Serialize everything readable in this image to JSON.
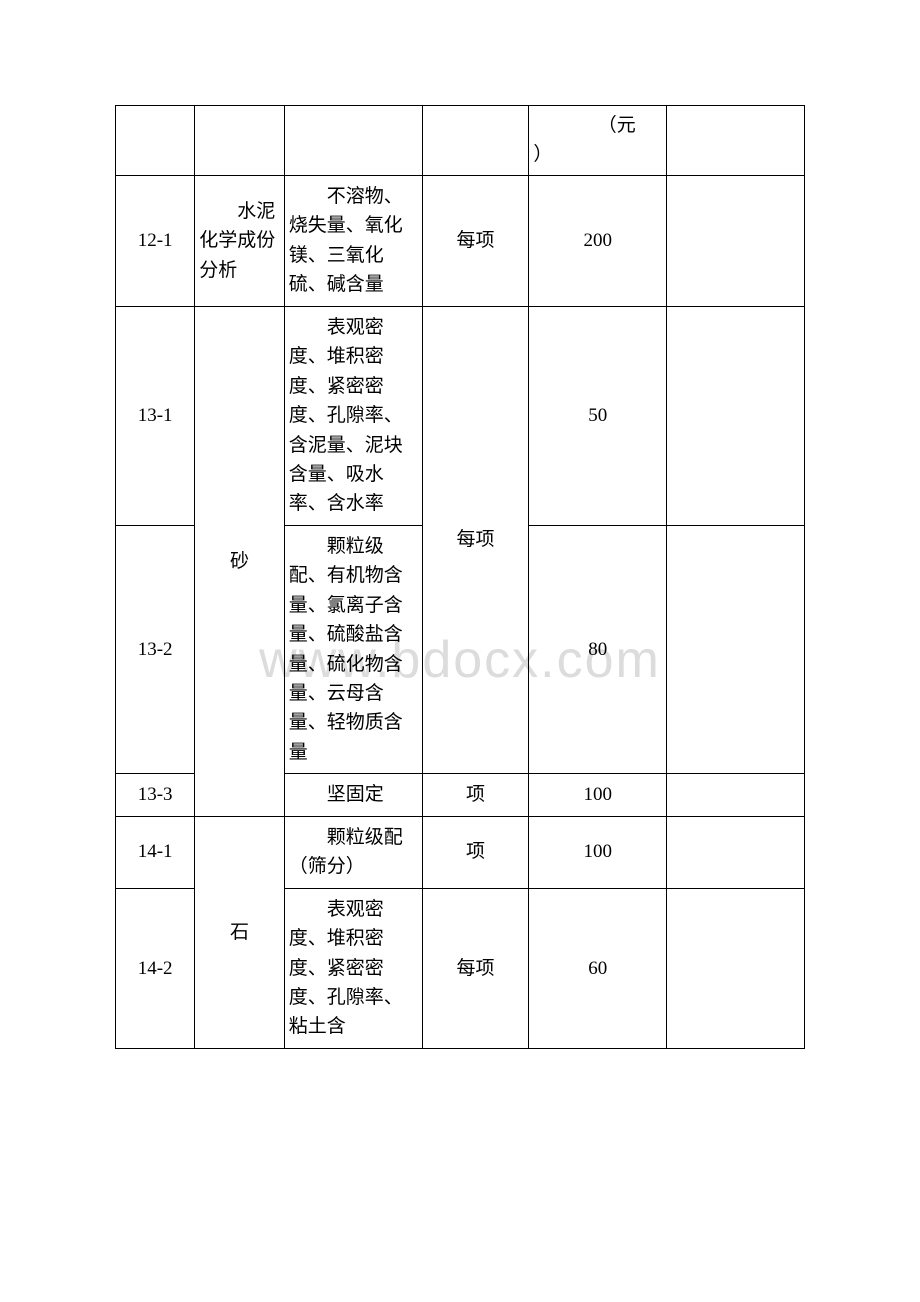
{
  "watermark": "www.bdocx.com",
  "header_price_unit": "（元）",
  "rows": [
    {
      "sn": "12-1",
      "category": "水泥化学成份分析",
      "item": "不溶物、烧失量、氧化镁、三氧化硫、碱含量",
      "unit": "每项",
      "price": "200"
    },
    {
      "sn": "13-1",
      "category": "砂",
      "item": "表观密度、堆积密度、紧密密度、孔隙率、含泥量、泥块含量、吸水率、含水率",
      "unit": "每项",
      "price": "50"
    },
    {
      "sn": "13-2",
      "category": "砂",
      "item": "颗粒级配、有机物含量、氯离子含量、硫酸盐含量、硫化物含量、云母含量、轻物质含量",
      "unit": "每项",
      "price": "80"
    },
    {
      "sn": "13-3",
      "category": "砂",
      "item": "坚固定",
      "unit": "项",
      "price": "100"
    },
    {
      "sn": "14-1",
      "category": "石",
      "item": "颗粒级配（筛分）",
      "unit": "项",
      "price": "100"
    },
    {
      "sn": "14-2",
      "category": "石",
      "item": "表观密度、堆积密度、紧密密度、孔隙率、粘土含",
      "unit": "每项",
      "price": "60"
    }
  ]
}
